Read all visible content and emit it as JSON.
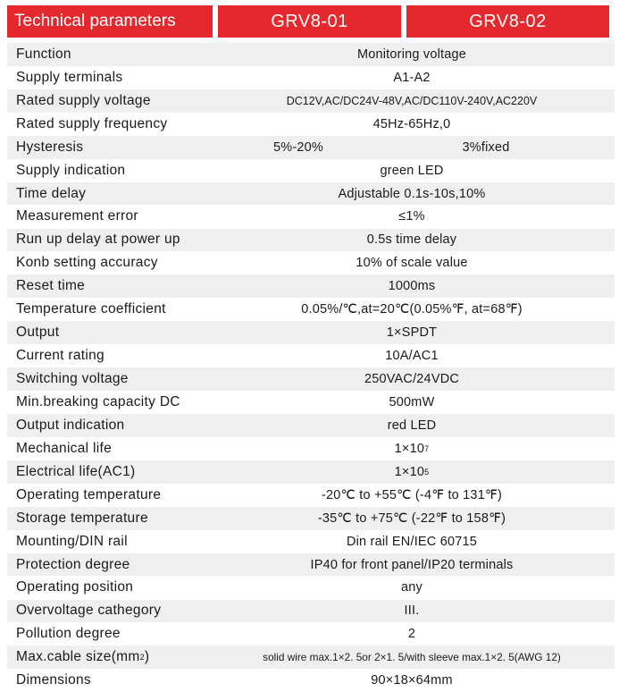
{
  "header": {
    "title": "Technical parameters",
    "model_1": "GRV8-01",
    "model_2": "GRV8-02"
  },
  "rows": [
    {
      "label": "Function",
      "value": "Monitoring voltage"
    },
    {
      "label": "Supply terminals",
      "value": "A1-A2"
    },
    {
      "label": "Rated supply voltage",
      "value": "DC12V,AC/DC24V-48V,AC/DC110V-240V,AC220V"
    },
    {
      "label": "Rated supply frequency",
      "value": "45Hz-65Hz,0"
    },
    {
      "label": "Hysteresis",
      "value_1": "5%-20%",
      "value_2": "3%fixed"
    },
    {
      "label": "Supply indication",
      "value": "green LED"
    },
    {
      "label": "Time delay",
      "value": "Adjustable 0.1s-10s,10%"
    },
    {
      "label": "Measurement error",
      "value": "≤1%"
    },
    {
      "label": "Run up delay at power up",
      "value": "0.5s time delay"
    },
    {
      "label": "Konb setting accuracy",
      "value": "10% of scale value"
    },
    {
      "label": "Reset time",
      "value": "1000ms"
    },
    {
      "label": "Temperature coefficient",
      "value": "0.05%/℃,at=20℃(0.05%℉,  at=68℉)"
    },
    {
      "label": "Output",
      "value": "1×SPDT"
    },
    {
      "label": "Current rating",
      "value": "10A/AC1"
    },
    {
      "label": "Switching voltage",
      "value": "250VAC/24VDC"
    },
    {
      "label": "Min.breaking capacity DC",
      "value": "500mW"
    },
    {
      "label": "Output indication",
      "value": "red LED"
    },
    {
      "label": "Mechanical life",
      "value_base": "1×10",
      "value_exp": "7"
    },
    {
      "label": "Electrical life(AC1)",
      "value_base": "1×10",
      "value_exp": "5"
    },
    {
      "label": "Operating temperature",
      "value": "-20℃ to +55℃ (-4℉ to 131℉)"
    },
    {
      "label": "Storage temperature",
      "value": "-35℃ to +75℃ (-22℉ to 158℉)"
    },
    {
      "label": "Mounting/DIN rail",
      "value": "Din rail EN/IEC 60715"
    },
    {
      "label": "Protection degree",
      "value": "IP40 for front panel/IP20 terminals"
    },
    {
      "label": "Operating position",
      "value": "any"
    },
    {
      "label": "Overvoltage cathegory",
      "value": "III."
    },
    {
      "label": "Pollution degree",
      "value": "2"
    },
    {
      "label_base": "Max.cable size(mm",
      "label_exp": "2",
      "label_end": ")",
      "value": "solid wire max.1×2. 5or 2×1. 5/with  sleeve max.1×2. 5(AWG 12)"
    },
    {
      "label": "Dimensions",
      "value": "90×18×64mm"
    }
  ],
  "colors": {
    "header_bg": "#e5282d",
    "row_alt_bg": "#efefef"
  }
}
